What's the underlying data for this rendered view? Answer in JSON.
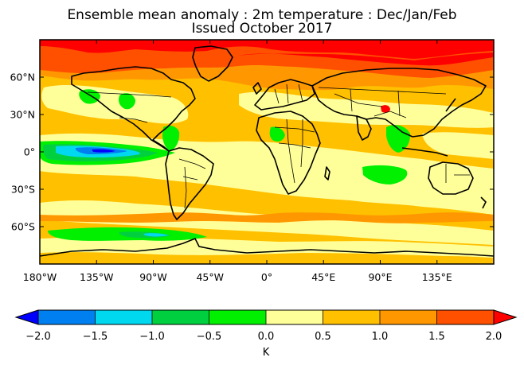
{
  "title": {
    "line1": "Ensemble mean anomaly : 2m temperature : Dec/Jan/Feb",
    "line2": "Issued October 2017"
  },
  "map": {
    "lon_range": [
      -180,
      180
    ],
    "lat_range": [
      -90,
      90
    ],
    "x_ticks": [
      {
        "value": -180,
        "label": "180°W"
      },
      {
        "value": -135,
        "label": "135°W"
      },
      {
        "value": -90,
        "label": "90°W"
      },
      {
        "value": -45,
        "label": "45°W"
      },
      {
        "value": 0,
        "label": "0°"
      },
      {
        "value": 45,
        "label": "45°E"
      },
      {
        "value": 90,
        "label": "90°E"
      },
      {
        "value": 135,
        "label": "135°E"
      }
    ],
    "y_ticks": [
      {
        "value": 60,
        "label": "60°N"
      },
      {
        "value": 30,
        "label": "30°N"
      },
      {
        "value": 0,
        "label": "0°"
      },
      {
        "value": -30,
        "label": "30°S"
      },
      {
        "value": -60,
        "label": "60°S"
      }
    ]
  },
  "colorbar": {
    "unit_label": "K",
    "boundaries": [
      -2.0,
      -1.5,
      -1.0,
      -0.5,
      0.0,
      0.5,
      1.0,
      1.5,
      2.0
    ],
    "tick_labels": [
      "−2.0",
      "−1.5",
      "−1.0",
      "−0.5",
      "0.0",
      "0.5",
      "1.0",
      "1.5",
      "2.0"
    ],
    "under_color": "#0000ff",
    "over_color": "#ff0000",
    "colors": [
      "#0080f0",
      "#00d8f0",
      "#00d040",
      "#00f000",
      "#ffff99",
      "#ffc000",
      "#ff9800",
      "#ff5000"
    ]
  }
}
